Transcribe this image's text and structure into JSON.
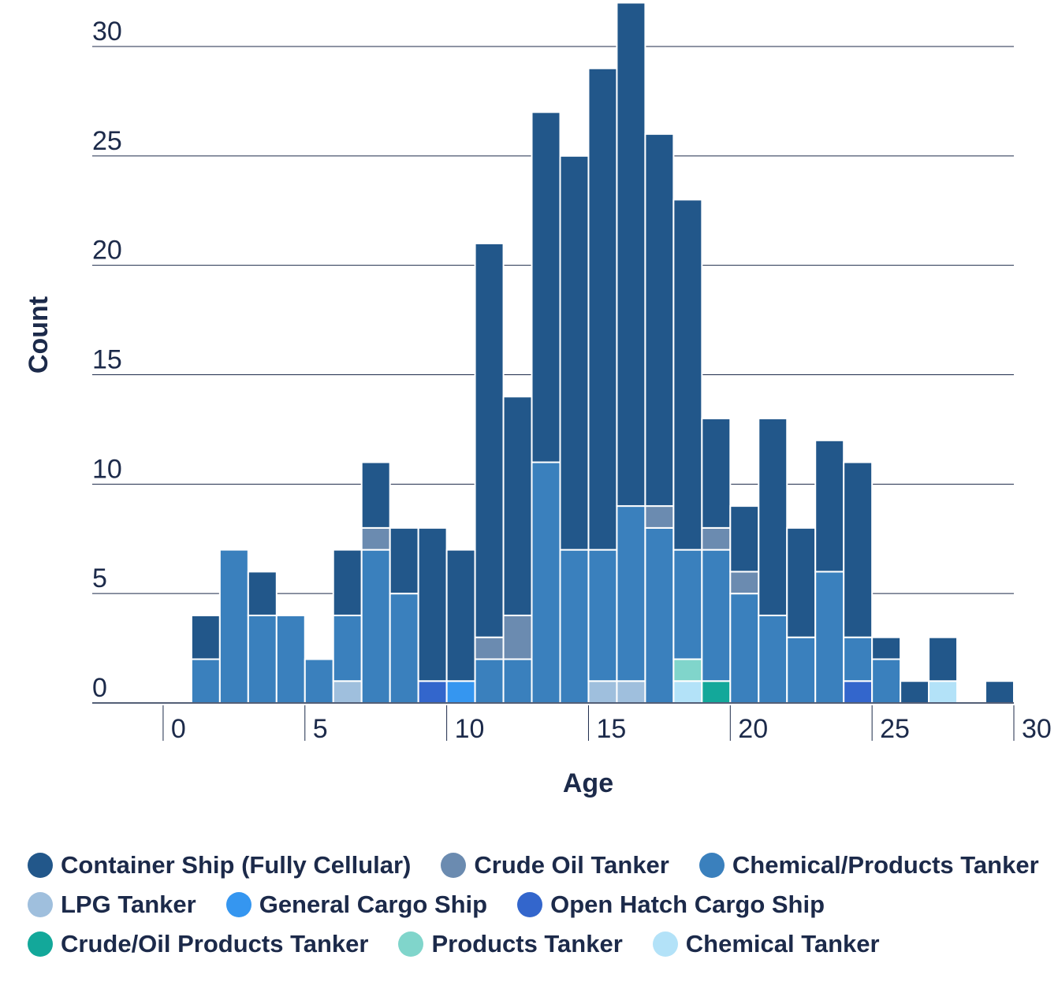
{
  "chart_data": {
    "type": "stacked-histogram",
    "x_label": "Age",
    "y_label": "Count",
    "bins": [
      0,
      1,
      2,
      3,
      4,
      5,
      6,
      7,
      8,
      9,
      10,
      11,
      12,
      13,
      14,
      15,
      16,
      17,
      18,
      19,
      20,
      21,
      22,
      23,
      24,
      25,
      26,
      27,
      28,
      29,
      30
    ],
    "xlim": [
      -2.5,
      30
    ],
    "xticks": [
      0,
      5,
      10,
      15,
      20,
      25,
      30
    ],
    "ylim": [
      0,
      32
    ],
    "yticks": [
      0,
      5,
      10,
      15,
      20,
      25,
      30
    ],
    "grid": true,
    "series": [
      {
        "name": "Container Ship (Fully Cellular)",
        "color": "#22578a",
        "values": [
          0,
          2,
          0,
          2,
          0,
          0,
          3,
          3,
          3,
          7,
          6,
          18,
          10,
          16,
          18,
          22,
          23,
          17,
          16,
          5,
          3,
          9,
          5,
          6,
          8,
          1,
          1,
          2,
          0,
          1
        ]
      },
      {
        "name": "Crude Oil Tanker",
        "color": "#6b8bb0",
        "values": [
          0,
          0,
          0,
          0,
          0,
          0,
          0,
          1,
          0,
          0,
          0,
          1,
          2,
          0,
          0,
          0,
          0,
          1,
          0,
          1,
          1,
          0,
          0,
          0,
          0,
          0,
          0,
          0,
          0,
          0
        ]
      },
      {
        "name": "Chemical/Products Tanker",
        "color": "#3a80bd",
        "values": [
          0,
          2,
          7,
          4,
          4,
          2,
          3,
          7,
          5,
          0,
          0,
          2,
          2,
          11,
          7,
          6,
          8,
          8,
          5,
          6,
          5,
          4,
          3,
          6,
          2,
          2,
          0,
          0,
          0,
          0
        ]
      },
      {
        "name": "LPG Tanker",
        "color": "#9fbfdd",
        "values": [
          0,
          0,
          0,
          0,
          0,
          0,
          1,
          0,
          0,
          0,
          0,
          0,
          0,
          0,
          0,
          1,
          1,
          0,
          0,
          0,
          0,
          0,
          0,
          0,
          0,
          0,
          0,
          0,
          0,
          0
        ]
      },
      {
        "name": "General Cargo Ship",
        "color": "#3596f0",
        "values": [
          0,
          0,
          0,
          0,
          0,
          0,
          0,
          0,
          0,
          0,
          1,
          0,
          0,
          0,
          0,
          0,
          0,
          0,
          0,
          0,
          0,
          0,
          0,
          0,
          0,
          0,
          0,
          0,
          0,
          0
        ]
      },
      {
        "name": "Open Hatch Cargo Ship",
        "color": "#3366cc",
        "values": [
          0,
          0,
          0,
          0,
          0,
          0,
          0,
          0,
          0,
          1,
          0,
          0,
          0,
          0,
          0,
          0,
          0,
          0,
          0,
          0,
          0,
          0,
          0,
          0,
          1,
          0,
          0,
          0,
          0,
          0
        ]
      },
      {
        "name": "Crude/Oil Products Tanker",
        "color": "#13a89a",
        "values": [
          0,
          0,
          0,
          0,
          0,
          0,
          0,
          0,
          0,
          0,
          0,
          0,
          0,
          0,
          0,
          0,
          0,
          0,
          0,
          1,
          0,
          0,
          0,
          0,
          0,
          0,
          0,
          0,
          0,
          0
        ]
      },
      {
        "name": "Products Tanker",
        "color": "#80d5cb",
        "values": [
          0,
          0,
          0,
          0,
          0,
          0,
          0,
          0,
          0,
          0,
          0,
          0,
          0,
          0,
          0,
          0,
          0,
          0,
          1,
          0,
          0,
          0,
          0,
          0,
          0,
          0,
          0,
          0,
          0,
          0
        ]
      },
      {
        "name": "Chemical Tanker",
        "color": "#b3e2f8",
        "values": [
          0,
          0,
          0,
          0,
          0,
          0,
          0,
          0,
          0,
          0,
          0,
          0,
          0,
          0,
          0,
          0,
          0,
          0,
          1,
          0,
          0,
          0,
          0,
          0,
          0,
          0,
          0,
          1,
          0,
          0
        ]
      }
    ]
  }
}
